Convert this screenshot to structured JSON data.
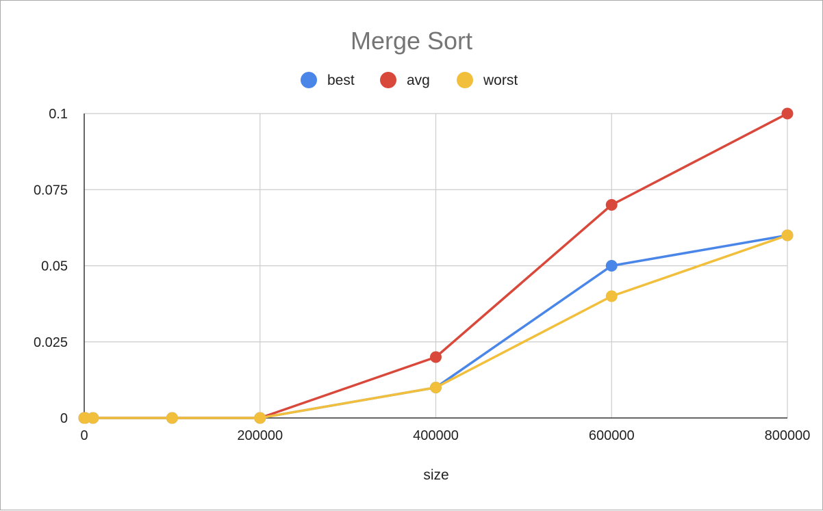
{
  "chart_data": {
    "type": "line",
    "title": "Merge Sort",
    "xlabel": "size",
    "ylabel": "",
    "x": [
      0,
      1000,
      10000,
      100000,
      200000,
      400000,
      600000,
      800000
    ],
    "xlim": [
      0,
      800000
    ],
    "ylim": [
      0,
      0.1
    ],
    "x_ticks": [
      "0",
      "200000",
      "400000",
      "600000",
      "800000"
    ],
    "x_tick_values": [
      0,
      200000,
      400000,
      600000,
      800000
    ],
    "y_ticks": [
      "0",
      "0.025",
      "0.05",
      "0.075",
      "0.1"
    ],
    "y_tick_values": [
      0,
      0.025,
      0.05,
      0.075,
      0.1
    ],
    "grid": true,
    "legend_position": "top",
    "series": [
      {
        "name": "best",
        "color": "#4a86e8",
        "values": [
          0,
          0,
          0,
          0,
          0,
          0.01,
          0.05,
          0.06
        ]
      },
      {
        "name": "avg",
        "color": "#d9493b",
        "values": [
          0,
          0,
          0,
          0,
          0,
          0.02,
          0.07,
          0.1
        ]
      },
      {
        "name": "worst",
        "color": "#f1bf3c",
        "values": [
          0,
          0,
          0,
          0,
          0,
          0.01,
          0.04,
          0.06
        ]
      }
    ]
  }
}
